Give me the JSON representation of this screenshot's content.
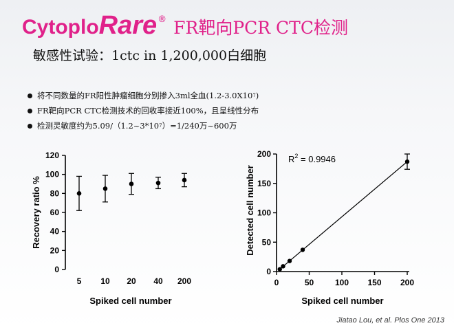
{
  "slide": {
    "brand_part1": "Cytoplo",
    "brand_part2": "Rare",
    "brand_mark": "®",
    "title_rest": "FR靶向PCR CTC检测",
    "subtitle": "敏感性试验：1ctc in 1,200,000白细胞",
    "bullets": [
      {
        "text": "将不同数量的FR阳性肿瘤细胞分别掺入3ml全血(1.2-3.0X10",
        "sup": "7",
        "suffix": ")"
      },
      {
        "text": "FR靶向PCR CTC检测技术的回收率接近100%，且呈线性分布",
        "sup": "",
        "suffix": ""
      },
      {
        "text": "检测灵敏度约为5.09/（1.2~3*10",
        "sup": "7",
        "suffix": "）=1/240万~600万"
      }
    ],
    "citation": "Jiatao Lou, et al. Plos One 2013"
  },
  "colors": {
    "brand": "#e0218a",
    "ink": "#111111"
  },
  "chart_data": [
    {
      "type": "scatter",
      "xlabel": "Spiked cell number",
      "ylabel": "Recovery ratio %",
      "categories": [
        "5",
        "10",
        "20",
        "40",
        "200"
      ],
      "values": [
        80,
        85,
        90,
        91,
        94
      ],
      "errors": [
        18,
        14,
        11,
        6,
        7
      ],
      "ylim": [
        0,
        120
      ],
      "yticks": [
        "0",
        "20",
        "40",
        "60",
        "80",
        "100",
        "120"
      ]
    },
    {
      "type": "line",
      "xlabel": "Spiked cell number",
      "ylabel": "Detected cell number",
      "x": [
        5,
        10,
        20,
        40,
        200
      ],
      "y": [
        4,
        9,
        18,
        37,
        187
      ],
      "errors": [
        0,
        0,
        0,
        0,
        13
      ],
      "xlim": [
        0,
        200
      ],
      "ylim": [
        0,
        200
      ],
      "xticks": [
        "0",
        "50",
        "100",
        "150",
        "200"
      ],
      "yticks": [
        "0",
        "50",
        "100",
        "150",
        "200"
      ],
      "annotation_base": "R",
      "annotation_sup": "2",
      "annotation_value": " = 0.9946"
    }
  ]
}
